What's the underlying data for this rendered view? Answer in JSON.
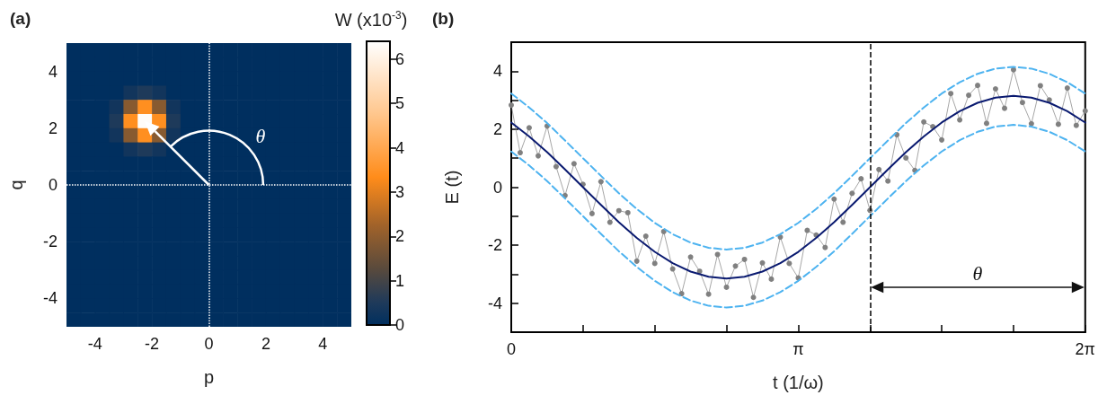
{
  "chart_data": [
    {
      "type": "heatmap",
      "title": "(a)",
      "xlabel": "p",
      "ylabel": "q",
      "clabel": "W (x10$^{-3}$)",
      "x": [
        -4.75,
        -4.25,
        -3.75,
        -3.25,
        -2.75,
        -2.25,
        -1.75,
        -1.25,
        -0.75,
        -0.25,
        0.25,
        0.75,
        1.25,
        1.75,
        2.25,
        2.75,
        3.25,
        3.75,
        4.25,
        4.75
      ],
      "y": [
        4.75,
        4.25,
        3.75,
        3.25,
        2.75,
        2.25,
        1.75,
        1.25,
        0.75,
        0.25,
        -0.25,
        -0.75,
        -1.25,
        -1.75,
        -2.25,
        -2.75,
        -3.25,
        -3.75,
        -4.25,
        -4.75
      ],
      "cells": [
        [
          0,
          0,
          0,
          0,
          0,
          0,
          0,
          0,
          0,
          0,
          0,
          0,
          0,
          0,
          0,
          0,
          0,
          0,
          0,
          0
        ],
        [
          0,
          0,
          0,
          0,
          0,
          0,
          0,
          0,
          0,
          0,
          0,
          0,
          0,
          0,
          0,
          0,
          0,
          0,
          0,
          0
        ],
        [
          0,
          0,
          0,
          0,
          0,
          0,
          0,
          0,
          0,
          0,
          0,
          0,
          0,
          0,
          0,
          0,
          0,
          0,
          0,
          0
        ],
        [
          0,
          0,
          0,
          0,
          0.3,
          0.5,
          0.3,
          0,
          0,
          0,
          0,
          0,
          0,
          0,
          0,
          0,
          0,
          0,
          0,
          0
        ],
        [
          0,
          0,
          0,
          0.3,
          1.9,
          3.4,
          1.9,
          0.3,
          0,
          0,
          0,
          0,
          0,
          0,
          0,
          0,
          0,
          0,
          0,
          0
        ],
        [
          0,
          0,
          0,
          0.5,
          3.4,
          6.3,
          3.4,
          0.5,
          0,
          0,
          0,
          0,
          0,
          0,
          0,
          0,
          0,
          0,
          0,
          0
        ],
        [
          0,
          0,
          0,
          0.3,
          1.9,
          3.4,
          1.9,
          0.3,
          0,
          0,
          0,
          0,
          0,
          0,
          0,
          0,
          0,
          0,
          0,
          0
        ],
        [
          0,
          0,
          0,
          0,
          0.3,
          0.5,
          0.3,
          0,
          0,
          0,
          0,
          0,
          0,
          0,
          0,
          0,
          0,
          0,
          0,
          0
        ],
        [
          0,
          0,
          0,
          0,
          0,
          0,
          0,
          0,
          0,
          0,
          0,
          0,
          0,
          0,
          0,
          0,
          0,
          0,
          0,
          0
        ],
        [
          0,
          0,
          0,
          0,
          0,
          0,
          0,
          0,
          0,
          0,
          0,
          0,
          0,
          0,
          0,
          0,
          0,
          0,
          0,
          0
        ],
        [
          0,
          0,
          0,
          0,
          0,
          0,
          0,
          0,
          0,
          0,
          0,
          0,
          0,
          0,
          0,
          0,
          0,
          0,
          0,
          0
        ],
        [
          0,
          0,
          0,
          0,
          0,
          0,
          0,
          0,
          0,
          0,
          0,
          0,
          0,
          0,
          0,
          0,
          0,
          0,
          0,
          0
        ],
        [
          0,
          0,
          0,
          0,
          0,
          0,
          0,
          0,
          0,
          0,
          0,
          0,
          0,
          0,
          0,
          0,
          0,
          0,
          0,
          0
        ],
        [
          0,
          0,
          0,
          0,
          0,
          0,
          0,
          0,
          0,
          0,
          0,
          0,
          0,
          0,
          0,
          0,
          0,
          0,
          0,
          0
        ],
        [
          0,
          0,
          0,
          0,
          0,
          0,
          0,
          0,
          0,
          0,
          0,
          0,
          0,
          0,
          0,
          0,
          0,
          0,
          0,
          0
        ],
        [
          0,
          0,
          0,
          0,
          0,
          0,
          0,
          0,
          0,
          0,
          0,
          0,
          0,
          0,
          0,
          0,
          0,
          0,
          0,
          0
        ],
        [
          0,
          0,
          0,
          0,
          0,
          0,
          0,
          0,
          0,
          0,
          0,
          0,
          0,
          0,
          0,
          0,
          0,
          0,
          0,
          0
        ],
        [
          0,
          0,
          0,
          0,
          0,
          0,
          0,
          0,
          0,
          0,
          0,
          0,
          0,
          0,
          0,
          0,
          0,
          0,
          0,
          0
        ],
        [
          0,
          0,
          0,
          0,
          0,
          0,
          0,
          0,
          0,
          0,
          0,
          0,
          0,
          0,
          0,
          0,
          0,
          0,
          0,
          0
        ],
        [
          0,
          0,
          0,
          0,
          0,
          0,
          0,
          0,
          0,
          0,
          0,
          0,
          0,
          0,
          0,
          0,
          0,
          0,
          0,
          0
        ]
      ],
      "xlim": [
        -5,
        5
      ],
      "ylim": [
        -5,
        5
      ],
      "xticks": [
        -4,
        -2,
        0,
        2,
        4
      ],
      "yticks": [
        -4,
        -2,
        0,
        2,
        4
      ],
      "clim": [
        0,
        6.4
      ],
      "cticks": [
        0,
        1,
        2,
        3,
        4,
        5,
        6
      ],
      "ref_lines": [
        {
          "axis": "x",
          "value": 0,
          "color": "#ffffff",
          "line_style": "dotted"
        },
        {
          "axis": "y",
          "value": 0,
          "color": "#ffffff",
          "line_style": "dotted"
        }
      ],
      "annotations": [
        "θ"
      ]
    },
    {
      "type": "line",
      "title": "(b)",
      "xlabel": "t (1/ω)",
      "ylabel": "E (t)",
      "x": [
        0,
        0.196,
        0.393,
        0.589,
        0.785,
        0.982,
        1.178,
        1.374,
        1.571,
        1.767,
        1.963,
        2.16,
        2.356,
        2.553,
        2.749,
        2.945,
        3.142,
        3.338,
        3.534,
        3.731,
        3.927,
        4.123,
        4.32,
        4.516,
        4.712,
        4.909,
        5.105,
        5.301,
        5.498,
        5.694,
        5.89,
        6.087,
        6.283
      ],
      "xlim": [
        0,
        6.283
      ],
      "xticks": [
        0,
        {
          "value": 0.785,
          "label": null
        },
        {
          "value": 1.571,
          "label": null
        },
        {
          "value": 2.356,
          "label": null
        },
        {
          "value": 3.142,
          "label": "π"
        },
        {
          "value": 3.927,
          "label": null
        },
        {
          "value": 4.712,
          "label": null
        },
        {
          "value": 5.498,
          "label": null
        },
        {
          "value": 6.283,
          "label": "2π"
        }
      ],
      "ylim": [
        -5,
        5
      ],
      "yticks": [
        {
          "value": -5,
          "label": null
        },
        -4,
        {
          "value": -3,
          "label": null
        },
        -2,
        {
          "value": -1,
          "label": null
        },
        0,
        {
          "value": 1,
          "label": null
        },
        2,
        {
          "value": 3,
          "label": null
        },
        4,
        {
          "value": 5,
          "label": null
        }
      ],
      "series": [
        {
          "color": "#808080",
          "marker": "circle",
          "x": [
            0,
            0.098,
            0.196,
            0.295,
            0.393,
            0.491,
            0.589,
            0.687,
            0.785,
            0.884,
            0.982,
            1.08,
            1.178,
            1.276,
            1.374,
            1.473,
            1.571,
            1.669,
            1.767,
            1.865,
            1.963,
            2.062,
            2.16,
            2.258,
            2.356,
            2.454,
            2.553,
            2.651,
            2.749,
            2.847,
            2.945,
            3.043,
            3.142,
            3.24,
            3.338,
            3.436,
            3.534,
            3.632,
            3.731,
            3.829,
            3.927,
            4.025,
            4.123,
            4.221,
            4.32,
            4.418,
            4.516,
            4.614,
            4.712,
            4.811,
            4.909,
            5.007,
            5.105,
            5.203,
            5.301,
            5.4,
            5.498,
            5.596,
            5.694,
            5.792,
            5.89,
            5.989,
            6.087,
            6.185,
            6.283
          ],
          "values": [
            2.83,
            1.19,
            2.05,
            1.08,
            2.11,
            0.71,
            -0.29,
            0.81,
            0.1,
            -0.91,
            0.19,
            -1.21,
            -0.81,
            -0.88,
            -2.55,
            -1.69,
            -2.63,
            -1.53,
            -2.82,
            -3.67,
            -2.41,
            -2.9,
            -3.69,
            -2.32,
            -3.45,
            -2.72,
            -2.49,
            -3.8,
            -2.61,
            -3.17,
            -1.72,
            -2.63,
            -3.13,
            -1.49,
            -1.65,
            -2.08,
            -0.41,
            -1.21,
            -0.21,
            0.29,
            -0.8,
            0.61,
            0.21,
            1.81,
            1.01,
            0.58,
            2.25,
            2.09,
            1.63,
            3.23,
            2.32,
            3.17,
            3.51,
            2.2,
            3.39,
            2.72,
            4.05,
            2.92,
            2.19,
            3.5,
            3.01,
            2.17,
            3.42,
            2.13,
            2.63
          ]
        },
        {
          "color": "#4db3f0",
          "marker": "none",
          "line_style": "dashed",
          "values": [
            3.23,
            2.75,
            2.21,
            1.61,
            1,
            0.39,
            -0.21,
            -0.75,
            -1.23,
            -1.62,
            -1.91,
            -2.09,
            -2.15,
            -2.09,
            -1.91,
            -1.62,
            -1.23,
            -0.75,
            -0.21,
            0.39,
            1,
            1.61,
            2.21,
            2.75,
            3.23,
            3.62,
            3.91,
            4.09,
            4.15,
            4.09,
            3.91,
            3.62,
            3.23
          ]
        },
        {
          "color": "#4db3f0",
          "marker": "none",
          "line_style": "dashed",
          "values": [
            1.23,
            0.75,
            0.21,
            -0.39,
            -1,
            -1.61,
            -2.21,
            -2.75,
            -3.23,
            -3.62,
            -3.91,
            -4.09,
            -4.15,
            -4.09,
            -3.91,
            -3.62,
            -3.23,
            -2.75,
            -2.21,
            -1.61,
            -1,
            -0.39,
            0.21,
            0.75,
            1.23,
            1.62,
            1.91,
            2.09,
            2.15,
            2.09,
            1.91,
            1.62,
            1.23
          ]
        },
        {
          "color": "#0a1a70",
          "marker": "none",
          "line_style": "solid",
          "values": [
            2.23,
            1.75,
            1.21,
            0.61,
            0,
            -0.61,
            -1.21,
            -1.75,
            -2.23,
            -2.62,
            -2.91,
            -3.09,
            -3.15,
            -3.09,
            -2.91,
            -2.62,
            -2.23,
            -1.75,
            -1.21,
            -0.61,
            0,
            0.61,
            1.21,
            1.75,
            2.23,
            2.62,
            2.91,
            3.09,
            3.15,
            3.09,
            2.91,
            2.62,
            2.23
          ]
        }
      ],
      "ref_lines": [
        {
          "axis": "x",
          "value": 3.927,
          "color": "#000000",
          "line_style": "dashed"
        }
      ],
      "annotations": [
        "θ"
      ]
    }
  ]
}
